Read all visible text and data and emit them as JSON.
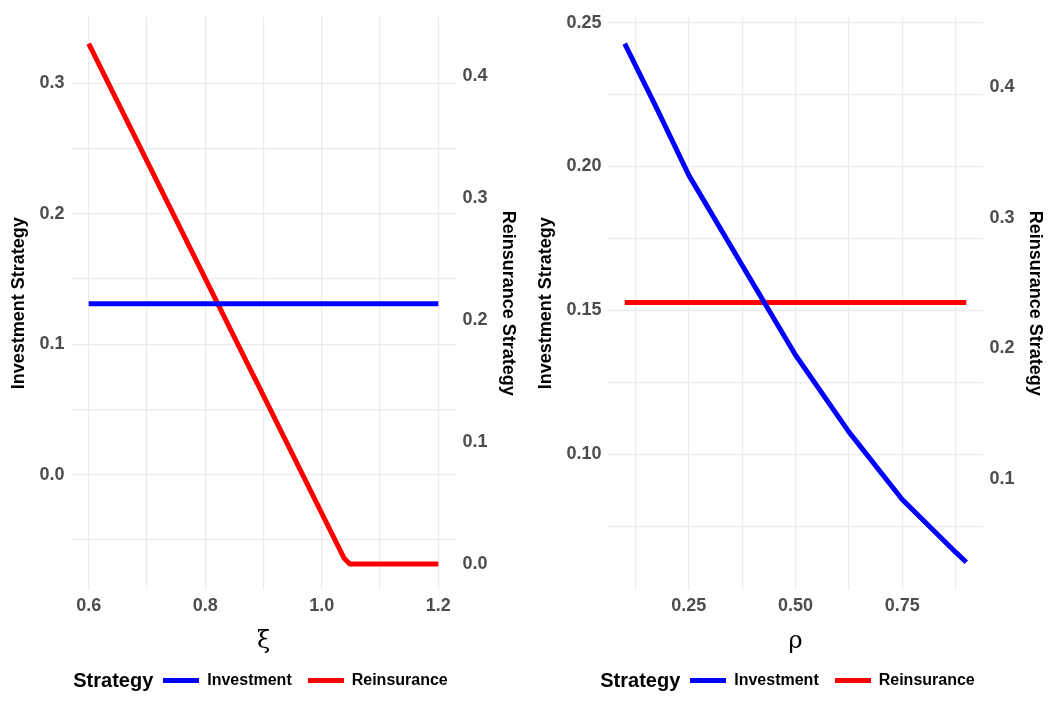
{
  "chart_data": [
    {
      "type": "line",
      "xlabel": "ξ",
      "ylabel": "Investment Strategy",
      "y2label": "Reinsurance Strategy",
      "legend_title": "Strategy",
      "legend": "bottom",
      "grid": true,
      "xlim": [
        0.569,
        1.231
      ],
      "xticks": [
        0.6,
        {
          "value": 0.7,
          "label": null
        },
        0.8,
        {
          "value": 0.9,
          "label": null
        },
        {
          "value": 1.0,
          "label": "1.0"
        },
        {
          "value": 1.1,
          "label": null
        },
        1.2
      ],
      "ylim": [
        -0.088,
        0.351
      ],
      "yticks": [
        {
          "value": -0.05,
          "label": null
        },
        {
          "value": 0,
          "label": "0.0"
        },
        {
          "value": 0.05,
          "label": null
        },
        0.1,
        {
          "value": 0.15,
          "label": null
        },
        0.2,
        {
          "value": 0.25,
          "label": null
        },
        0.3
      ],
      "y2lim": [
        -0.021,
        0.449
      ],
      "y2ticks": [
        {
          "value": 0,
          "label": "0.0"
        },
        0.1,
        0.2,
        0.3,
        0.4
      ],
      "series": [
        {
          "name": "Investment",
          "color": "#0000ff",
          "x": [
            0.6,
            1.2
          ],
          "values": [
            0.131,
            0.131
          ]
        },
        {
          "name": "Reinsurance",
          "color": "#ff0000",
          "axis": "y2",
          "x": [
            0.6,
            1.038,
            1.048,
            1.2
          ],
          "values": [
            0.427,
            0.005,
            0,
            0
          ]
        }
      ]
    },
    {
      "type": "line",
      "xlabel": "ρ",
      "ylabel": "Investment Strategy",
      "y2label": "Reinsurance Strategy",
      "legend_title": "Strategy",
      "legend": "bottom",
      "grid": true,
      "xlim": [
        0.06,
        0.94
      ],
      "xticks": [
        {
          "value": 0.125,
          "label": null
        },
        0.25,
        {
          "value": 0.375,
          "label": null
        },
        {
          "value": 0.5,
          "label": "0.50"
        },
        {
          "value": 0.625,
          "label": null
        },
        0.75,
        {
          "value": 0.875,
          "label": null
        }
      ],
      "ylim": [
        0.053,
        0.252
      ],
      "yticks": [
        {
          "value": 0.075,
          "label": null
        },
        {
          "value": 0.1,
          "label": "0.10"
        },
        {
          "value": 0.125,
          "label": null
        },
        0.15,
        {
          "value": 0.175,
          "label": null
        },
        {
          "value": 0.2,
          "label": "0.20"
        },
        {
          "value": 0.225,
          "label": null
        },
        0.25
      ],
      "y2lim": [
        0.015,
        0.454
      ],
      "y2ticks": [
        0.1,
        0.2,
        0.3,
        0.4
      ],
      "series": [
        {
          "name": "Investment",
          "color": "#0000ff",
          "x": [
            0.1,
            0.175,
            0.25,
            0.375,
            0.5,
            0.625,
            0.75,
            0.875,
            0.9
          ],
          "values": [
            0.2427,
            0.2202,
            0.197,
            0.1657,
            0.1345,
            0.1078,
            0.0843,
            0.066,
            0.0625
          ]
        },
        {
          "name": "Reinsurance",
          "color": "#ff0000",
          "axis": "y2",
          "x": [
            0.1,
            0.9
          ],
          "values": [
            0.235,
            0.235
          ]
        }
      ]
    }
  ]
}
